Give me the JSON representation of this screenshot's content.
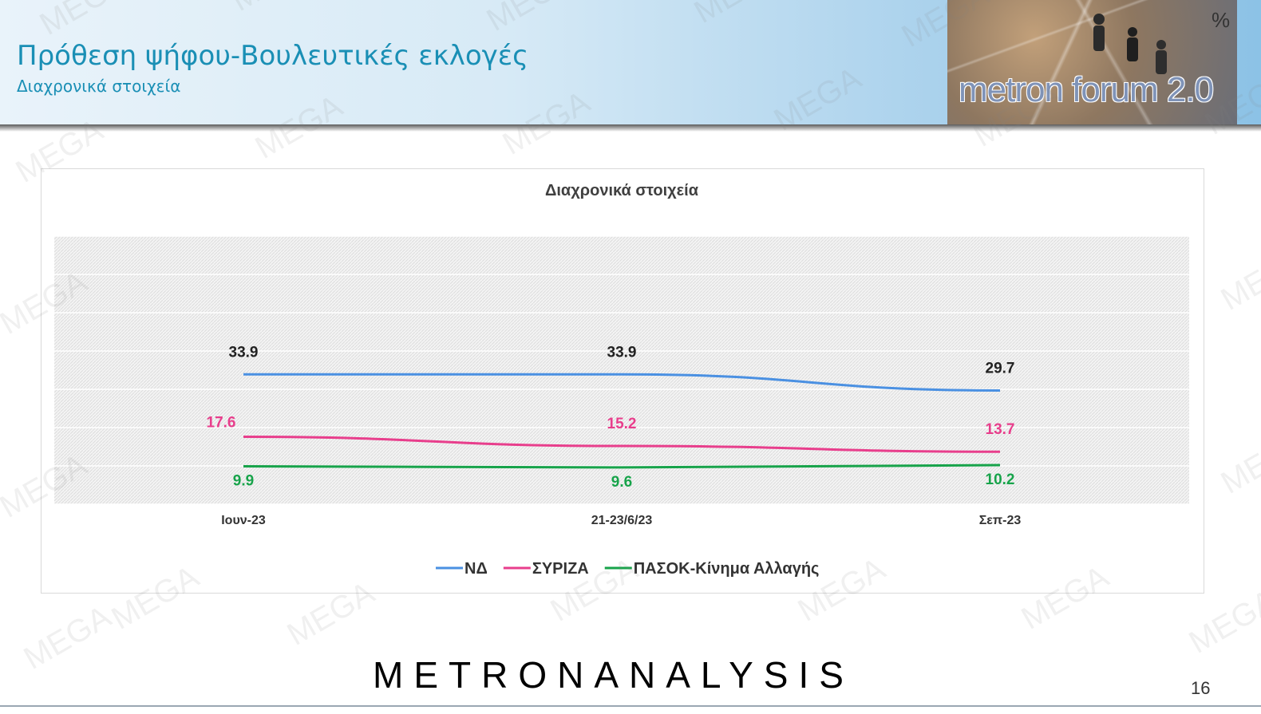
{
  "header": {
    "title": "Πρόθεση ψήφου-Βουλευτικές εκλογές",
    "subtitle": "Διαχρονικά στοιχεία",
    "forum_logo_text": "metron forum 2.0",
    "unit_symbol": "%"
  },
  "chart_data": {
    "type": "line",
    "title": "Διαχρονικά στοιχεία",
    "categories": [
      "Ιουν-23",
      "21-23/6/23",
      "Σεπ-23"
    ],
    "series": [
      {
        "name": "ΝΔ",
        "color": "#4a90e2",
        "values": [
          33.9,
          33.9,
          29.7
        ]
      },
      {
        "name": "ΣΥΡΙΖΑ",
        "color": "#e83e8c",
        "values": [
          17.6,
          15.2,
          13.7
        ]
      },
      {
        "name": "ΠΑΣΟΚ-Κίνημα Αλλαγής",
        "color": "#17a34a",
        "values": [
          9.9,
          9.6,
          10.2
        ]
      }
    ],
    "ylim": [
      0,
      70
    ],
    "grid": true,
    "legend_position": "bottom",
    "data_labels": true
  },
  "colors": {
    "title_blue": "#1a8fb5",
    "label_dark": "#222222",
    "brand_navy": "#1e2a4a",
    "brand_teal": "#1a9b8c"
  },
  "watermark_text": "MEGA",
  "footer": {
    "brand_part1": "METRON",
    "brand_part2": "ANALYSIS",
    "page_number": "16"
  }
}
